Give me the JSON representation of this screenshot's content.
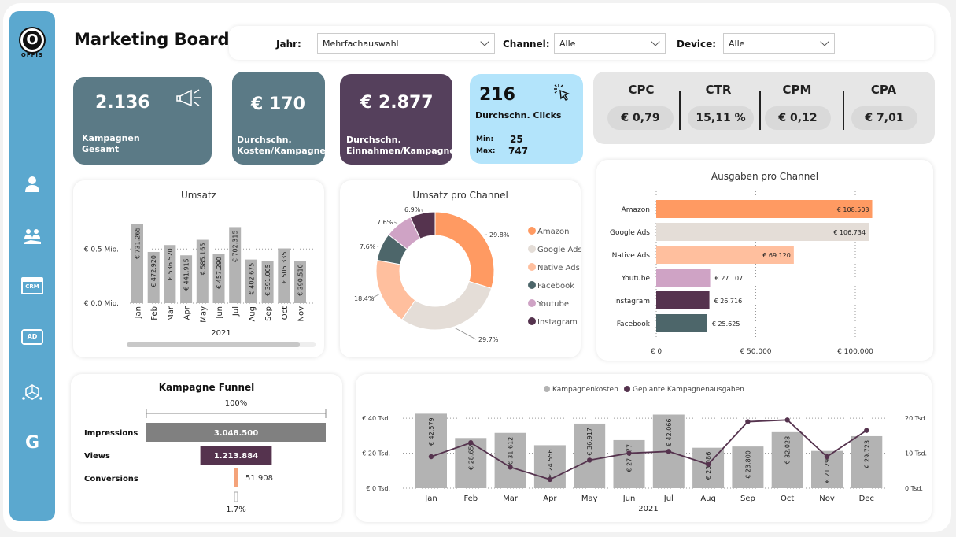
{
  "app": {
    "title": "Marketing Board",
    "logo_letter": "O",
    "logo_text": "OFFIS"
  },
  "sidebar": {
    "items": [
      {
        "icon": "user-icon"
      },
      {
        "icon": "team-icon"
      },
      {
        "icon": "crm-icon",
        "label": "CRM"
      },
      {
        "icon": "ad-icon",
        "label": "AD"
      },
      {
        "icon": "network-icon"
      },
      {
        "icon": "google-icon",
        "label": "G"
      }
    ]
  },
  "filters": {
    "year": {
      "label": "Jahr:",
      "value": "Mehrfachauswahl"
    },
    "channel": {
      "label": "Channel:",
      "value": "Alle"
    },
    "device": {
      "label": "Device:",
      "value": "Alle"
    }
  },
  "kpis": {
    "campaigns": {
      "value": "2.136",
      "label1": "Kampagnen",
      "label2": "Gesamt",
      "color": "#5b7a86"
    },
    "cost": {
      "value": "€ 170",
      "label1": "Durchschn.",
      "label2": "Kosten/Kampagne",
      "color": "#5b7a86"
    },
    "revenue": {
      "value": "€ 2.877",
      "label1": "Durchschn.",
      "label2": "Einnahmen/Kampagne",
      "color": "#55405c"
    },
    "clicks": {
      "value": "216",
      "label": "Durchschn. Clicks",
      "min_label": "Min:",
      "min": "25",
      "max_label": "Max:",
      "max": "747",
      "color": "#b3e4fb"
    }
  },
  "metrics": [
    {
      "name": "CPC",
      "value": "€ 0,79"
    },
    {
      "name": "CTR",
      "value": "15,11 %"
    },
    {
      "name": "CPM",
      "value": "€ 0,12"
    },
    {
      "name": "CPA",
      "value": "€ 7,01"
    }
  ],
  "chart_data": [
    {
      "id": "umsatz",
      "type": "bar",
      "title": "Umsatz",
      "xlabel": "2021",
      "categories": [
        "Jan",
        "Feb",
        "Mar",
        "Apr",
        "May",
        "Jun",
        "Jul",
        "Aug",
        "Sep",
        "Oct",
        "Nov"
      ],
      "values": [
        731265,
        472920,
        536520,
        441915,
        585165,
        457290,
        702315,
        402675,
        391005,
        505335,
        390510
      ],
      "labels": [
        "€ 731.265",
        "€ 472.920",
        "€ 536.520",
        "€ 441.915",
        "€ 585.165",
        "€ 457.290",
        "€ 702.315",
        "€ 402.675",
        "€ 391.005",
        "€ 505.335",
        "€ 390.510"
      ],
      "yticks": [
        "€ 0.0 Mio.",
        "€ 0.5 Mio."
      ],
      "ylim": [
        0,
        800000
      ],
      "color": "#b3b3b3"
    },
    {
      "id": "umsatz_channel",
      "type": "pie",
      "title": "Umsatz pro Channel",
      "slices": [
        {
          "name": "Amazon",
          "value": 29.8,
          "label": "29.8%",
          "color": "#ff9a62"
        },
        {
          "name": "Google Ads",
          "value": 29.7,
          "label": "29.7%",
          "color": "#e4ddd7"
        },
        {
          "name": "Native Ads",
          "value": 18.4,
          "label": "18.4%",
          "color": "#ffbf9e"
        },
        {
          "name": "Facebook",
          "value": 7.6,
          "label": "7.6%",
          "color": "#4d666a"
        },
        {
          "name": "Youtube",
          "value": 7.6,
          "label": "7.6%",
          "color": "#cfa3c5"
        },
        {
          "name": "Instagram",
          "value": 6.9,
          "label": "6.9%",
          "color": "#55334e"
        }
      ]
    },
    {
      "id": "ausgaben_channel",
      "type": "bar",
      "title": "Ausgaben pro Channel",
      "orientation": "horizontal",
      "categories": [
        "Amazon",
        "Google Ads",
        "Native Ads",
        "Youtube",
        "Instagram",
        "Facebook"
      ],
      "values": [
        108503,
        106734,
        69120,
        27107,
        26716,
        25625
      ],
      "labels": [
        "€ 108.503",
        "€ 106.734",
        "€ 69.120",
        "€ 27.107",
        "€ 26.716",
        "€ 25.625"
      ],
      "colors": [
        "#ff9a62",
        "#e4ddd7",
        "#ffbf9e",
        "#cfa3c5",
        "#55334e",
        "#4d666a"
      ],
      "xticks": [
        "€ 0",
        "€ 50.000",
        "€ 100.000"
      ],
      "xlim": [
        0,
        120000
      ]
    },
    {
      "id": "funnel",
      "type": "bar",
      "title": "Kampagne Funnel",
      "top_label": "100%",
      "bottom_label": "1.7%",
      "categories": [
        "Impressions",
        "Views",
        "Conversions"
      ],
      "values": [
        3048500,
        1213884,
        51908
      ],
      "labels": [
        "3.048.500",
        "1.213.884",
        "51.908"
      ],
      "colors": [
        "#808080",
        "#55334e",
        "#f4a37a"
      ]
    },
    {
      "id": "kampagnen",
      "type": "bar",
      "xlabel": "2021",
      "categories": [
        "Jan",
        "Feb",
        "Mar",
        "Apr",
        "May",
        "Jun",
        "Jul",
        "Aug",
        "Sep",
        "Oct",
        "Nov",
        "Dec"
      ],
      "series": [
        {
          "name": "Kampagnenkosten",
          "type": "bar",
          "color": "#b3b3b3",
          "values": [
            42579,
            28659,
            31612,
            24556,
            36917,
            27477,
            42066,
            23086,
            23800,
            32028,
            21294,
            29723
          ],
          "labels": [
            "€ 42.579",
            "€ 28.659",
            "€ 31.612",
            "€ 24.556",
            "€ 36.917",
            "€ 27.477",
            "€ 42.066",
            "€ 23.086",
            "€ 23.800",
            "€ 32.028",
            "€ 21.294",
            "€ 29.723"
          ]
        },
        {
          "name": "Geplante Kampagnenausgaben",
          "type": "line",
          "color": "#55334e",
          "axis": "right",
          "values": [
            9000,
            13000,
            6000,
            2500,
            8000,
            10000,
            10500,
            6800,
            19000,
            19500,
            9000,
            16500
          ]
        }
      ],
      "yticks_left": [
        "€ 0 Tsd.",
        "€ 20 Tsd.",
        "€ 40 Tsd."
      ],
      "ylim_left": [
        0,
        45000
      ],
      "yticks_right": [
        "0 Tsd.",
        "10 Tsd.",
        "20 Tsd."
      ],
      "ylim_right": [
        0,
        22500
      ]
    }
  ]
}
